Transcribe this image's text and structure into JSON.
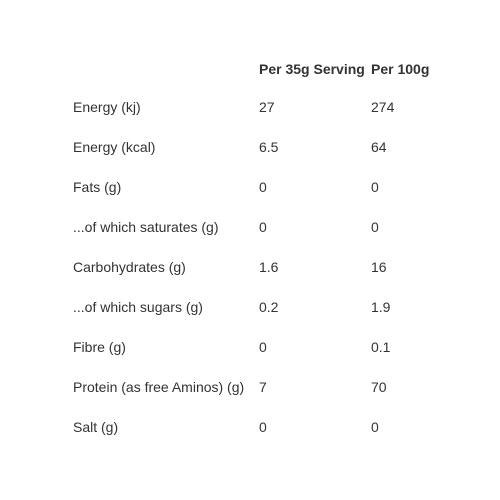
{
  "table": {
    "headers": {
      "nutrient": "",
      "per_serving": "Per 35g Serving",
      "per_100g": "Per 100g"
    },
    "rows": [
      {
        "nutrient": "Energy (kj)",
        "per_serving": "27",
        "per_100g": "274"
      },
      {
        "nutrient": "Energy (kcal)",
        "per_serving": "6.5",
        "per_100g": "64"
      },
      {
        "nutrient": "Fats (g)",
        "per_serving": "0",
        "per_100g": "0"
      },
      {
        "nutrient": "...of which saturates (g)",
        "per_serving": "0",
        "per_100g": "0"
      },
      {
        "nutrient": "Carbohydrates (g)",
        "per_serving": "1.6",
        "per_100g": "16"
      },
      {
        "nutrient": "...of which sugars (g)",
        "per_serving": "0.2",
        "per_100g": "1.9"
      },
      {
        "nutrient": "Fibre (g)",
        "per_serving": "0",
        "per_100g": "0.1"
      },
      {
        "nutrient": "Protein (as free Aminos) (g)",
        "per_serving": "7",
        "per_100g": "70"
      },
      {
        "nutrient": "Salt (g)",
        "per_serving": "0",
        "per_100g": "0"
      }
    ]
  }
}
